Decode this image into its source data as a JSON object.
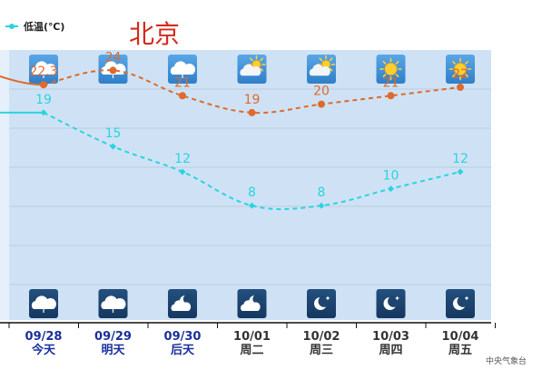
{
  "city": "北京",
  "legend": {
    "low_label": "低温(℃)"
  },
  "source": "中央气象台",
  "colors": {
    "high": "#de6a2c",
    "low": "#2ad4de",
    "plot_bg": "#cfe2f5",
    "today_bg": "#e6f0fa",
    "highlight_label": "#1b2f9c",
    "normal_label": "#333333"
  },
  "chart_data": {
    "type": "line",
    "x": [
      "09/28",
      "09/29",
      "09/30",
      "10/01",
      "10/02",
      "10/03",
      "10/04"
    ],
    "day_names": [
      "今天",
      "明天",
      "后天",
      "周二",
      "周三",
      "周四",
      "周五"
    ],
    "highlight_days": [
      0,
      1,
      2
    ],
    "series": [
      {
        "key": "high",
        "values": [
          22.3,
          24,
          21,
          19,
          20,
          21,
          22
        ]
      },
      {
        "key": "low",
        "name": "低温(℃)",
        "values": [
          19,
          15,
          12,
          8,
          8,
          10,
          12
        ]
      }
    ],
    "day_icons": [
      "cloudy",
      "cloudy",
      "cloudy",
      "partly-sunny",
      "partly-sunny",
      "sunny",
      "sunny"
    ],
    "night_icons": [
      "cloudy-night",
      "cloudy-night",
      "moon-cloudy",
      "moon-cloudy",
      "moon",
      "moon",
      "moon"
    ],
    "grid": true
  }
}
